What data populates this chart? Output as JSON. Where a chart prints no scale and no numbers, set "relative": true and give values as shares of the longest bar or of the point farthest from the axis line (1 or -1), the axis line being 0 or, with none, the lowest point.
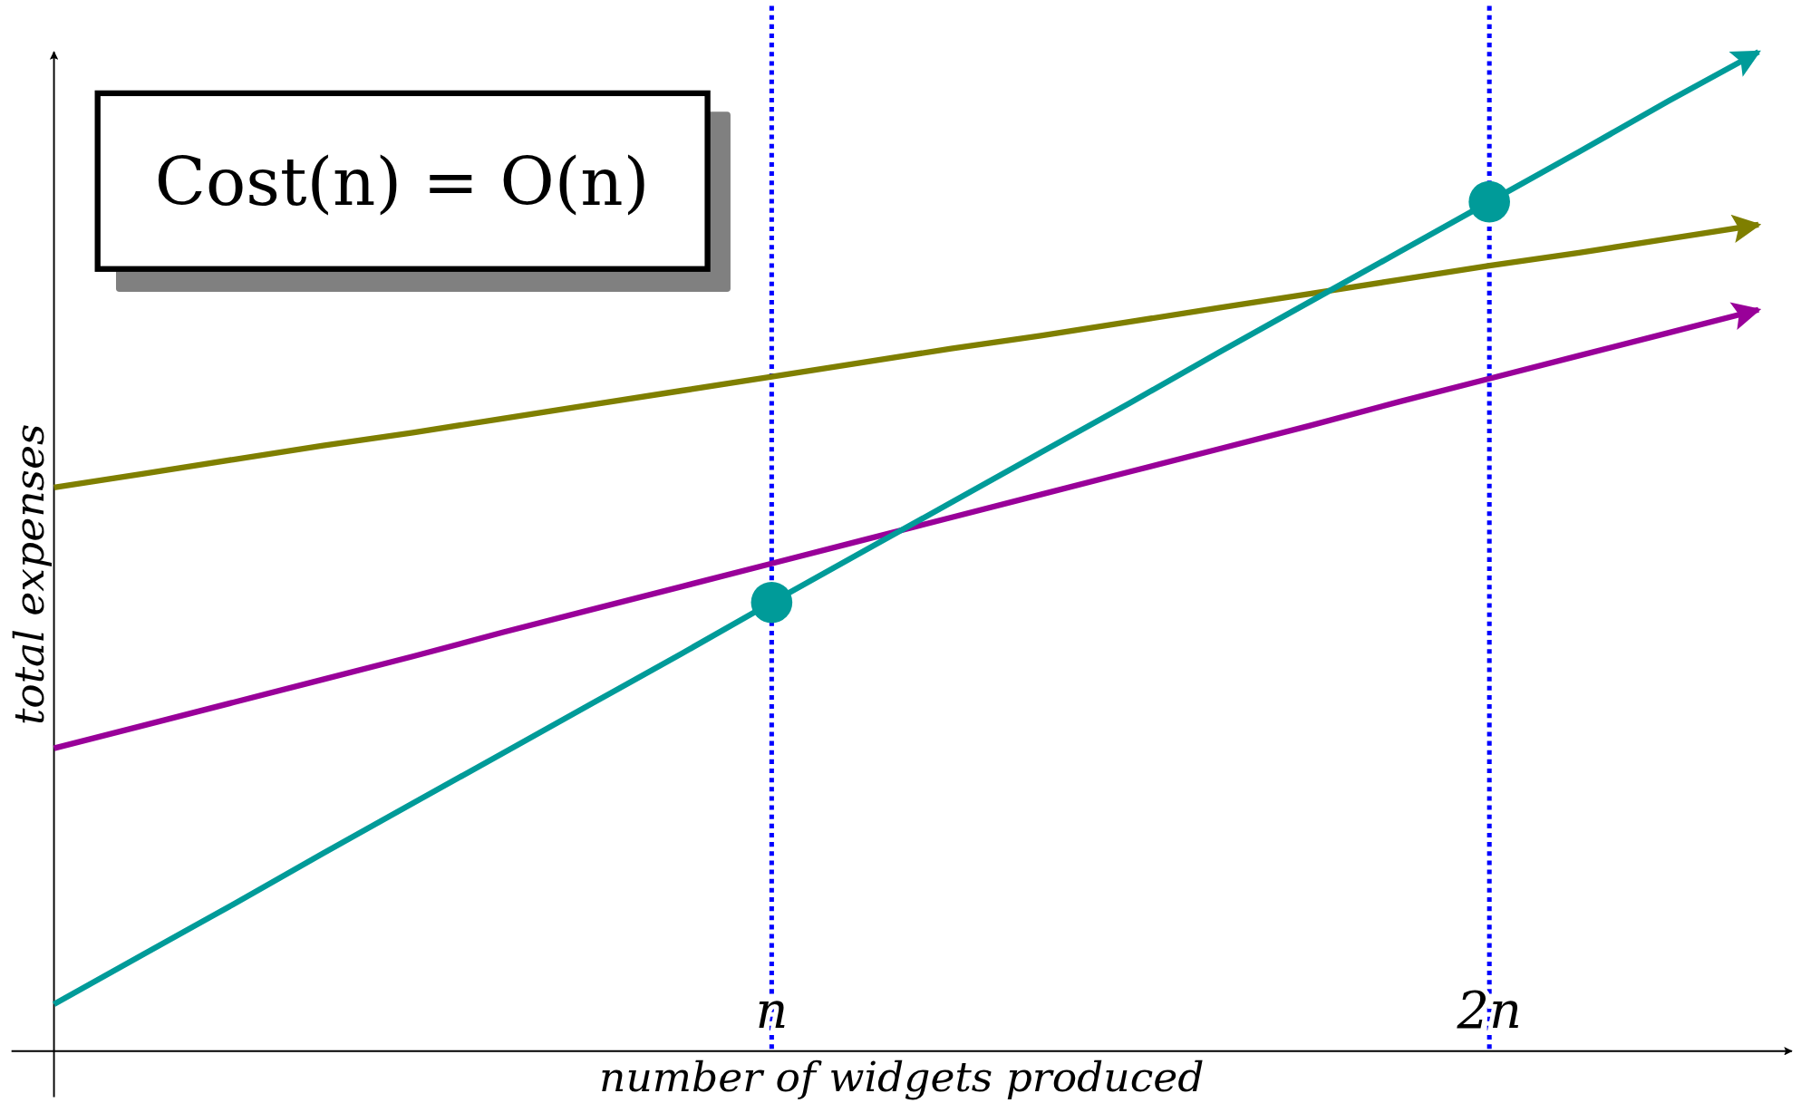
{
  "chart_data": {
    "type": "line",
    "relative": true,
    "xlabel": "number of widgets produced",
    "ylabel": "total expenses",
    "categories": [
      null,
      null,
      null,
      null,
      null,
      null,
      null,
      null,
      "n",
      null,
      null,
      null,
      null,
      null,
      null,
      null,
      "2n",
      null,
      null,
      null
    ],
    "annotations": [
      "Cost(n) = O(n)"
    ],
    "ref_lines": [
      {
        "axis": "x",
        "value": "n",
        "color": "#0000ff",
        "line_style": "dotted"
      },
      {
        "axis": "x",
        "value": "2n",
        "color": "#0000ff",
        "line_style": "dotted"
      }
    ],
    "series": [
      {
        "color": "#7f7f00",
        "values": [
          0.564,
          0.578,
          0.592,
          0.606,
          0.619,
          0.633,
          0.647,
          0.661,
          0.675,
          0.689,
          0.703,
          0.716,
          0.73,
          0.744,
          0.758,
          0.772,
          0.786,
          0.799,
          0.813,
          0.827
        ]
      },
      {
        "color": "#990099",
        "values": [
          0.303,
          0.326,
          0.349,
          0.372,
          0.395,
          0.419,
          0.442,
          0.465,
          0.488,
          0.511,
          0.534,
          0.557,
          0.58,
          0.603,
          0.626,
          0.65,
          0.673,
          0.696,
          0.719,
          0.742
        ]
      },
      {
        "color": "#009b99",
        "values": [
          0.047,
          0.097,
          0.147,
          0.198,
          0.248,
          0.298,
          0.348,
          0.398,
          0.449,
          0.499,
          0.549,
          0.599,
          0.649,
          0.7,
          0.75,
          0.8,
          0.85,
          0.9,
          0.951,
          1.0
        ]
      },
      {
        "type": "scatter",
        "color": "#009b99",
        "values": [
          null,
          null,
          null,
          null,
          null,
          null,
          null,
          null,
          0.449,
          null,
          null,
          null,
          null,
          null,
          null,
          null,
          0.85,
          null,
          null,
          null
        ],
        "marker": "circle"
      }
    ]
  }
}
